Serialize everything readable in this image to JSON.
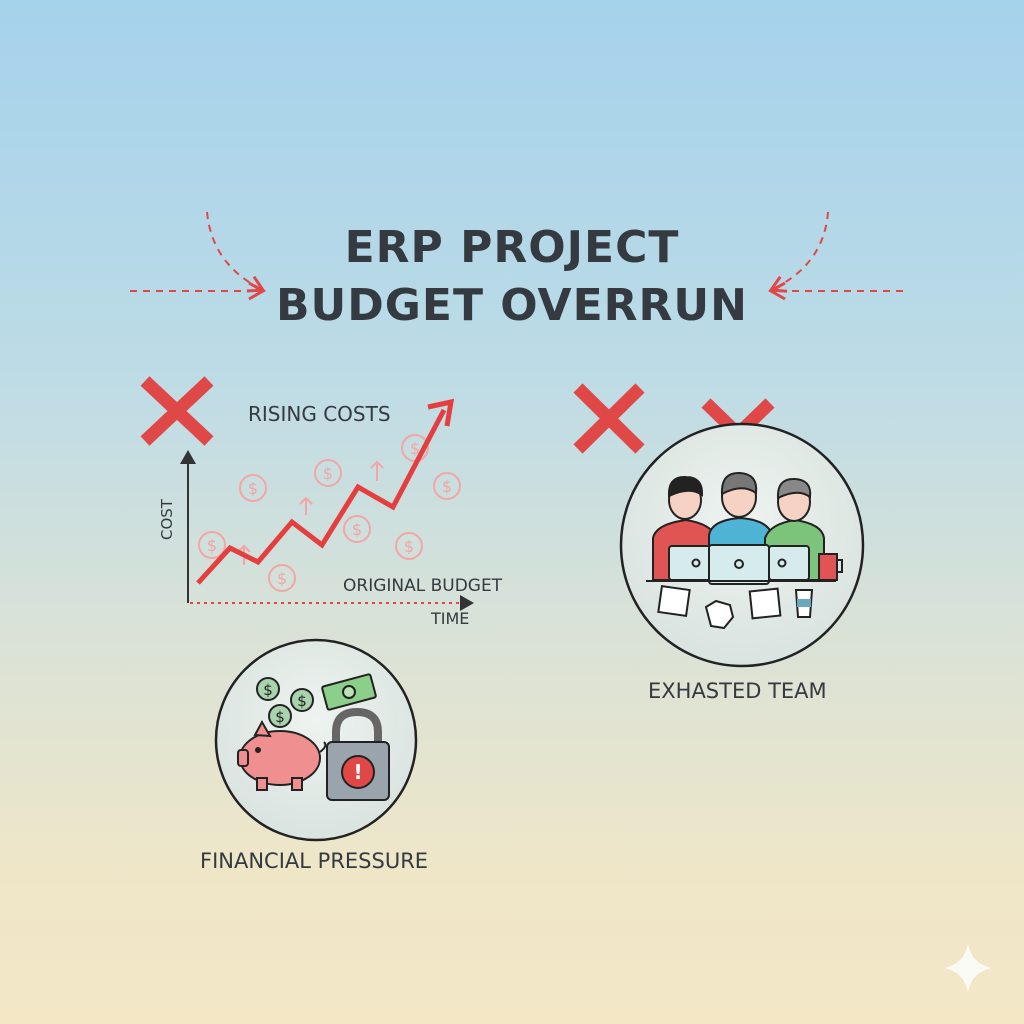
{
  "title": {
    "line1": "ERP PROJECT",
    "line2": "BUDGET OVERRUN"
  },
  "chart": {
    "title": "RISING COSTS",
    "ylabel": "COST",
    "xlabel": "TIME",
    "baseline_label": "ORIGINAL BUDGET"
  },
  "team": {
    "label": "EXHASTED TEAM"
  },
  "finance": {
    "label": "FINANCIAL PRESSURE"
  },
  "colors": {
    "accent_red": "#e04848",
    "text": "#343a40",
    "money_green": "#7fb58a",
    "piggy_pink": "#ef8f8f"
  },
  "icons": [
    "x-mark-icon",
    "dollar-coin-icon",
    "up-arrow-icon",
    "laptop-icon",
    "coffee-cup-icon",
    "document-icon",
    "piggy-bank-icon",
    "padlock-icon",
    "banknote-icon",
    "sparkle-icon"
  ]
}
